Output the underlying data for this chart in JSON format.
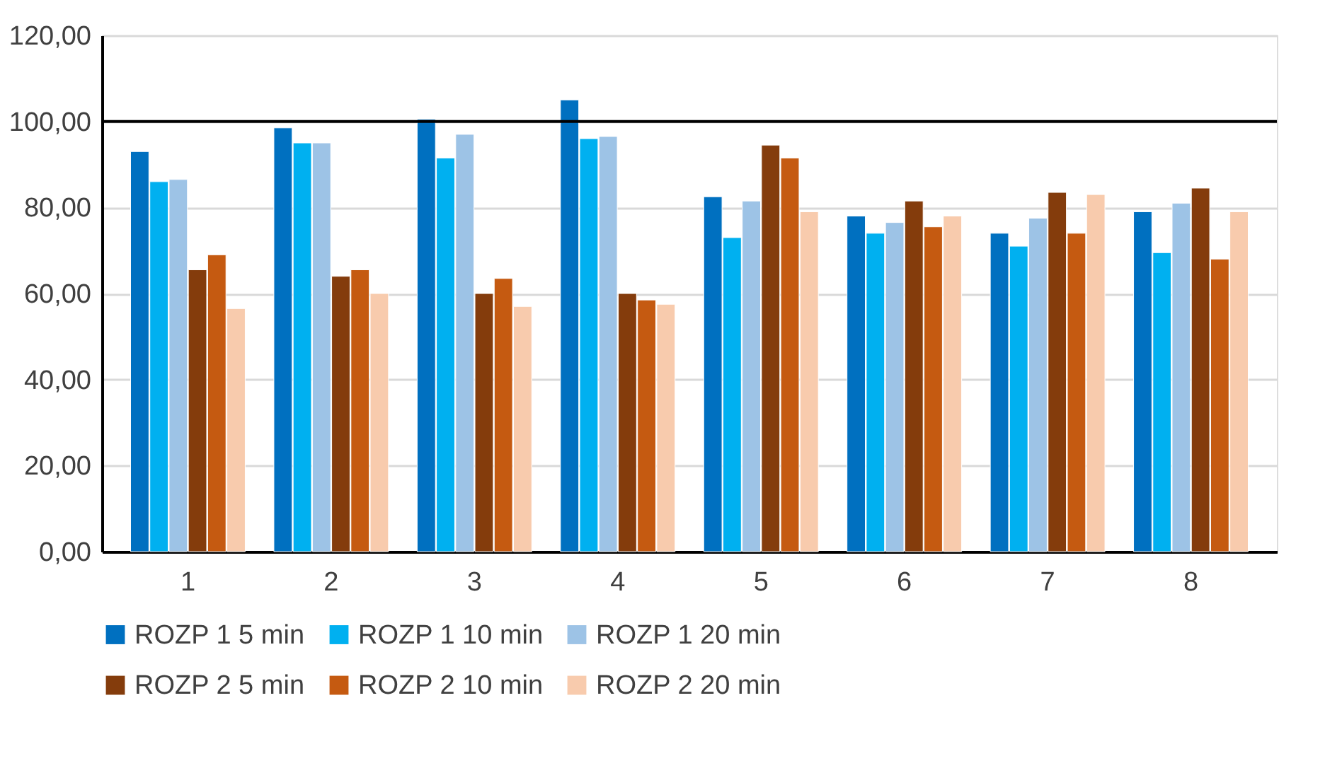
{
  "chart_data": {
    "type": "bar",
    "categories": [
      "1",
      "2",
      "3",
      "4",
      "5",
      "6",
      "7",
      "8"
    ],
    "series": [
      {
        "name": "ROZP 1 5 min",
        "color": "#0070c0",
        "values": [
          93,
          98.5,
          100.5,
          105,
          82.5,
          78,
          74,
          79
        ]
      },
      {
        "name": "ROZP 1 10 min",
        "color": "#00b0f0",
        "values": [
          86,
          95,
          91.5,
          96,
          73,
          74,
          71,
          69.5
        ]
      },
      {
        "name": "ROZP 1 20 min",
        "color": "#9dc3e6",
        "values": [
          86.5,
          95,
          97,
          96.5,
          81.5,
          76.5,
          77.5,
          81
        ]
      },
      {
        "name": "ROZP 2 5 min",
        "color": "#843c0c",
        "values": [
          65.5,
          64,
          60,
          60,
          94.5,
          81.5,
          83.5,
          84.5
        ]
      },
      {
        "name": "ROZP 2 10 min",
        "color": "#c55a11",
        "values": [
          69,
          65.5,
          63.5,
          58.5,
          91.5,
          75.5,
          74,
          68
        ]
      },
      {
        "name": "ROZP 2 20 min",
        "color": "#f8cbad",
        "values": [
          56.5,
          60,
          57,
          57.5,
          79,
          78,
          83,
          79
        ]
      }
    ],
    "ylim": [
      0,
      120
    ],
    "yticks": [
      {
        "value": 0,
        "label": "0,00"
      },
      {
        "value": 20,
        "label": "20,00"
      },
      {
        "value": 40,
        "label": "40,00"
      },
      {
        "value": 60,
        "label": "60,00"
      },
      {
        "value": 80,
        "label": "80,00"
      },
      {
        "value": 100,
        "label": "100,00"
      },
      {
        "value": 120,
        "label": "120,00"
      }
    ],
    "ref_lines": [
      {
        "axis": "y",
        "value": 100,
        "color": "#000000"
      }
    ],
    "grid": "y",
    "legend": "bottom"
  }
}
